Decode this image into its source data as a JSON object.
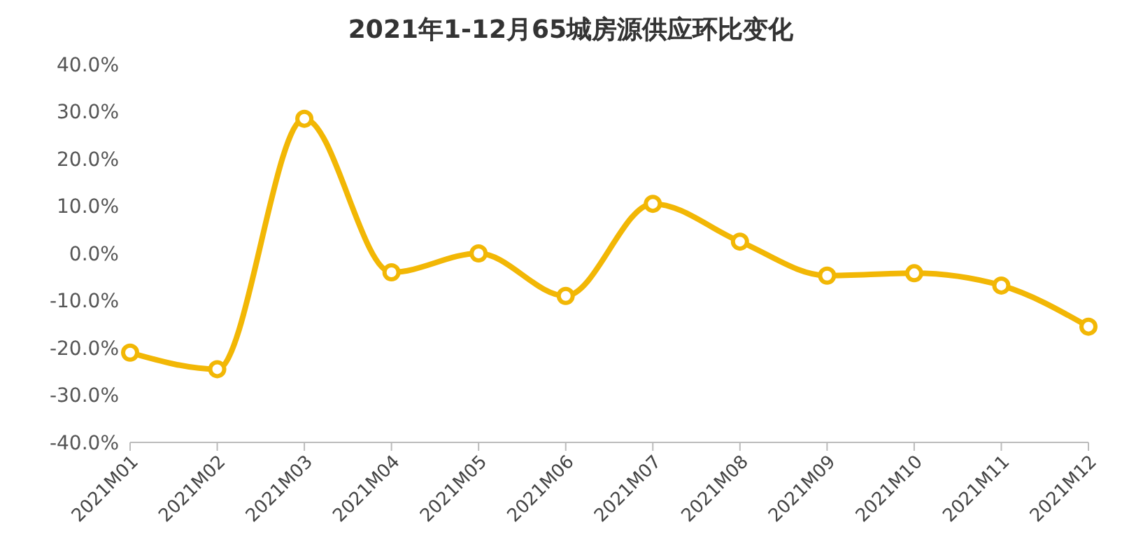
{
  "chart_data": {
    "type": "line",
    "title": "2021年1-12月65城房源供应环比变化",
    "categories": [
      "2021M01",
      "2021M02",
      "2021M03",
      "2021M04",
      "2021M05",
      "2021M06",
      "2021M07",
      "2021M08",
      "2021M09",
      "2021M10",
      "2021M11",
      "2021M12"
    ],
    "series": [
      {
        "color": "#f2b705",
        "values": [
          -21,
          -24.5,
          28.5,
          -4,
          0,
          -9,
          10.5,
          2.5,
          -4.7,
          -4.2,
          -6.8,
          -15.5
        ]
      }
    ],
    "ylim": [
      -40,
      40
    ],
    "yticks": [
      {
        "value": -40,
        "label": "-40.0%"
      },
      {
        "value": -30,
        "label": "-30.0%"
      },
      {
        "value": -20,
        "label": "-20.0%"
      },
      {
        "value": -10,
        "label": "-10.0%"
      },
      {
        "value": 0,
        "label": "0.0%"
      },
      {
        "value": 10,
        "label": "10.0%"
      },
      {
        "value": 20,
        "label": "20.0%"
      },
      {
        "value": 30,
        "label": "30.0%"
      },
      {
        "value": 40,
        "label": "40.0%"
      }
    ],
    "grid": false,
    "legend": false,
    "marker": "circle",
    "line_style": "solid"
  }
}
